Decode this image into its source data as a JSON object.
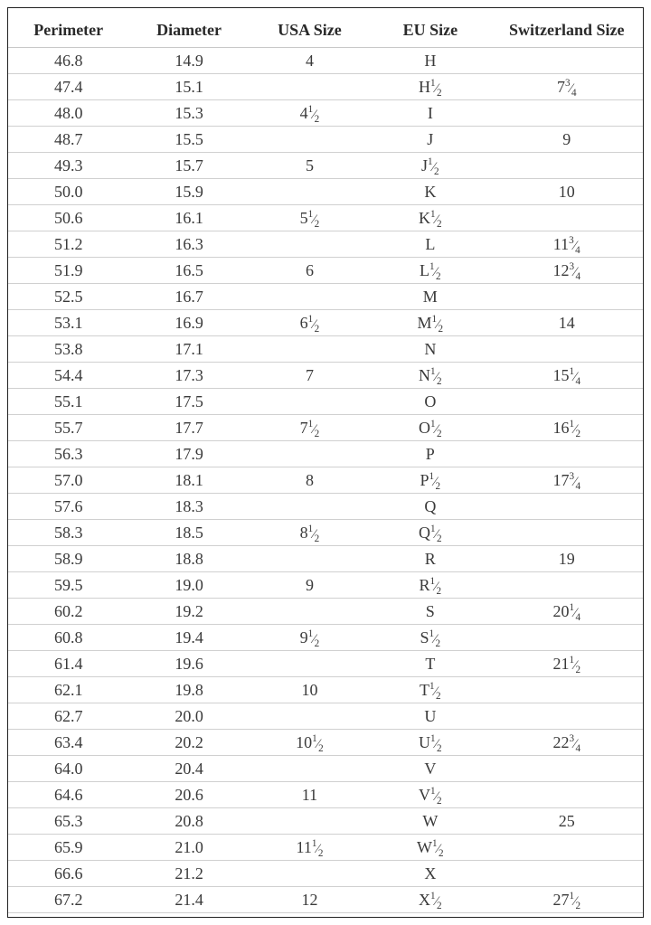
{
  "table": {
    "type": "table",
    "background_color": "#ffffff",
    "border_color": "#222222",
    "row_divider_color": "#d0d0d0",
    "header_fontsize": 18,
    "cell_fontsize": 18,
    "text_color": "#3a3a3a",
    "header_weight": "bold",
    "columns": [
      "Perimeter",
      "Diameter",
      "USA Size",
      "EU Size",
      "Switzerland Size"
    ],
    "column_widths_pct": [
      19,
      19,
      19,
      19,
      24
    ],
    "alignment": [
      "center",
      "center",
      "center",
      "center",
      "center"
    ],
    "rows": [
      [
        "46.8",
        "14.9",
        "4",
        "H",
        ""
      ],
      [
        "47.4",
        "15.1",
        "",
        "H½",
        "7¾"
      ],
      [
        "48.0",
        "15.3",
        "4½",
        "I",
        ""
      ],
      [
        "48.7",
        "15.5",
        "",
        "J",
        "9"
      ],
      [
        "49.3",
        "15.7",
        "5",
        "J½",
        ""
      ],
      [
        "50.0",
        "15.9",
        "",
        "K",
        "10"
      ],
      [
        "50.6",
        "16.1",
        "5½",
        "K½",
        ""
      ],
      [
        "51.2",
        "16.3",
        "",
        "L",
        "11¾"
      ],
      [
        "51.9",
        "16.5",
        "6",
        "L½",
        "12¾"
      ],
      [
        "52.5",
        "16.7",
        "",
        "M",
        ""
      ],
      [
        "53.1",
        "16.9",
        "6½",
        "M½",
        "14"
      ],
      [
        "53.8",
        "17.1",
        "",
        "N",
        ""
      ],
      [
        "54.4",
        "17.3",
        "7",
        "N½",
        "15¼"
      ],
      [
        "55.1",
        "17.5",
        "",
        "O",
        ""
      ],
      [
        "55.7",
        "17.7",
        "7½",
        "O½",
        "16½"
      ],
      [
        "56.3",
        "17.9",
        "",
        "P",
        ""
      ],
      [
        "57.0",
        "18.1",
        "8",
        "P½",
        "17¾"
      ],
      [
        "57.6",
        "18.3",
        "",
        "Q",
        ""
      ],
      [
        "58.3",
        "18.5",
        "8½",
        "Q½",
        ""
      ],
      [
        "58.9",
        "18.8",
        "",
        "R",
        "19"
      ],
      [
        "59.5",
        "19.0",
        "9",
        "R½",
        ""
      ],
      [
        "60.2",
        "19.2",
        "",
        "S",
        "20¼"
      ],
      [
        "60.8",
        "19.4",
        "9½",
        "S½",
        ""
      ],
      [
        "61.4",
        "19.6",
        "",
        "T",
        "21½"
      ],
      [
        "62.1",
        "19.8",
        "10",
        "T½",
        ""
      ],
      [
        "62.7",
        "20.0",
        "",
        "U",
        ""
      ],
      [
        "63.4",
        "20.2",
        "10½",
        "U½",
        "22¾"
      ],
      [
        "64.0",
        "20.4",
        "",
        "V",
        ""
      ],
      [
        "64.6",
        "20.6",
        "11",
        "V½",
        ""
      ],
      [
        "65.3",
        "20.8",
        "",
        "W",
        "25"
      ],
      [
        "65.9",
        "21.0",
        "11½",
        "W½",
        ""
      ],
      [
        "66.6",
        "21.2",
        "",
        "X",
        ""
      ],
      [
        "67.2",
        "21.4",
        "12",
        "X½",
        "27½"
      ]
    ]
  }
}
